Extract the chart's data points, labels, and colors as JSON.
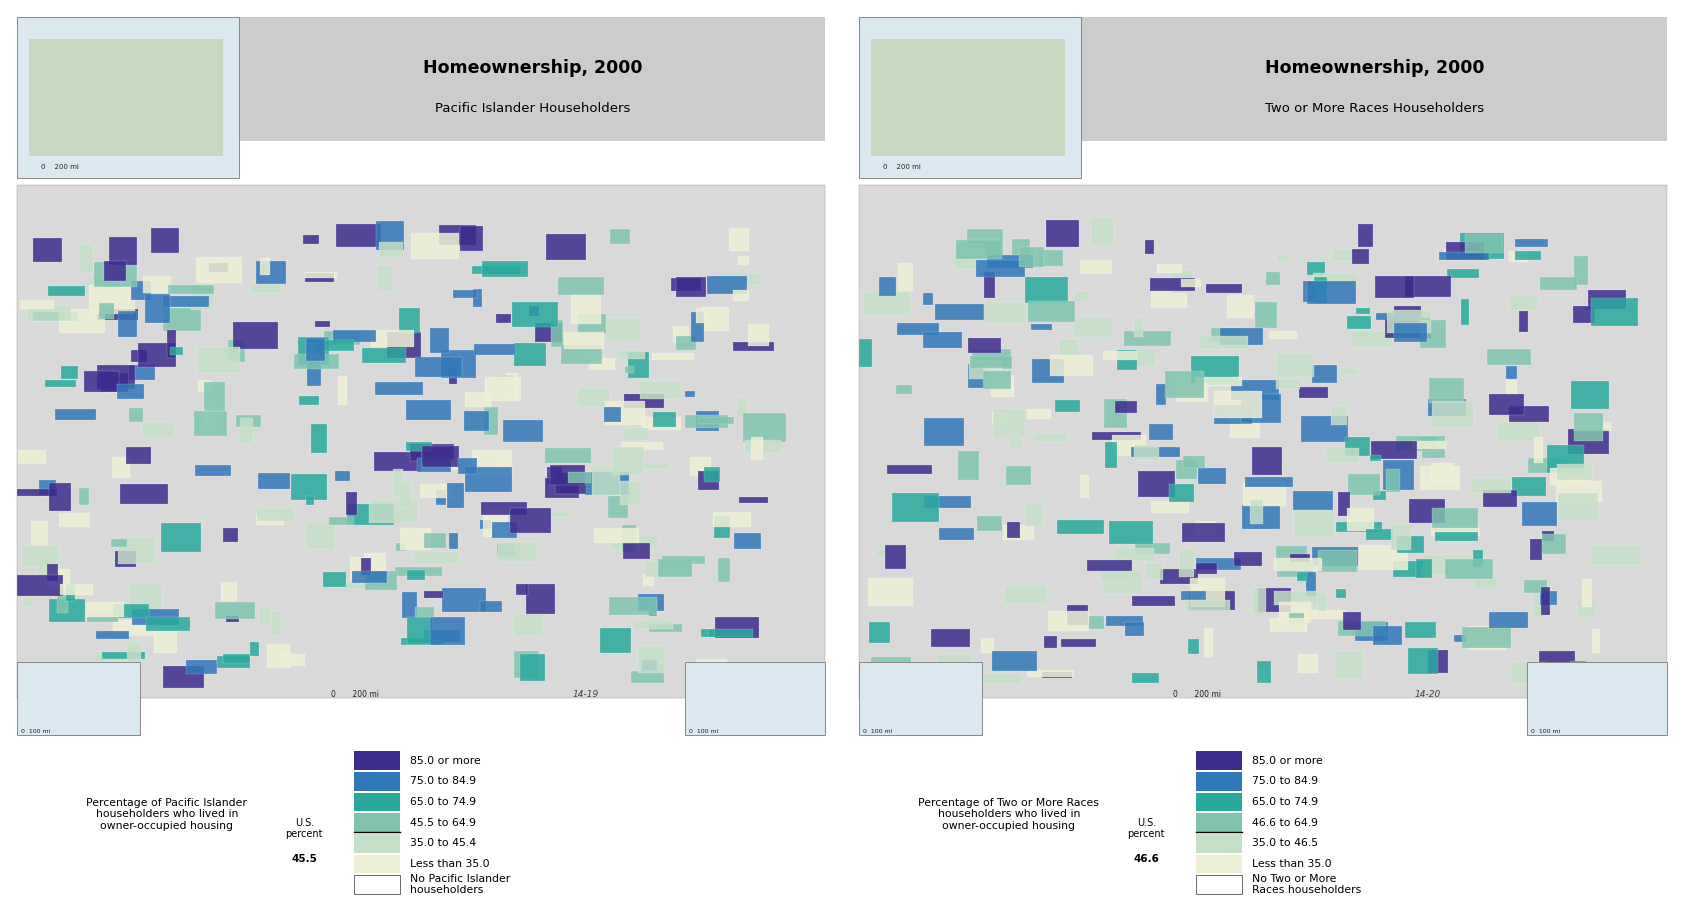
{
  "background_color": "#ffffff",
  "panel_bg": "#cccccc",
  "title1": "Homeownership, 2000",
  "subtitle1": "Pacific Islander Householders",
  "title2": "Homeownership, 2000",
  "subtitle2": "Two or More Races Householders",
  "legend1_desc": "Percentage of Pacific Islander\nhouseholders who lived in\nowner-occupied housing",
  "legend2_desc": "Percentage of Two or More Races\nhouseholders who lived in\nowner-occupied housing",
  "us_percent1_label": "U.S.\npercent",
  "us_percent1_val": "45.5",
  "us_percent2_label": "U.S.\npercent",
  "us_percent2_val": "46.6",
  "fig_num1": "14-19",
  "fig_num2": "14-20",
  "legend1_colors": [
    "#3d2b8e",
    "#3178b8",
    "#29a99e",
    "#80c4b0",
    "#c5dfc8",
    "#eef0d5",
    "#ffffff"
  ],
  "legend1_labels": [
    "85.0 or more",
    "75.0 to 84.9",
    "65.0 to 74.9",
    "45.5 to 64.9",
    "35.0 to 45.4",
    "Less than 35.0",
    "No Pacific Islander\nhouseholders"
  ],
  "legend1_divider_idx": 3,
  "legend2_colors": [
    "#3d2b8e",
    "#3178b8",
    "#29a99e",
    "#80c4b0",
    "#c5dfc8",
    "#eef0d5",
    "#ffffff"
  ],
  "legend2_labels": [
    "85.0 or more",
    "75.0 to 84.9",
    "65.0 to 74.9",
    "46.6 to 64.9",
    "35.0 to 46.5",
    "Less than 35.0",
    "No Two or More\nRaces householders"
  ],
  "legend2_divider_idx": 3,
  "map_fill": "#d9d9d9",
  "ocean_color": "#b8cdd8",
  "inset_border": "#888888",
  "scale_bar_color": "#222222"
}
